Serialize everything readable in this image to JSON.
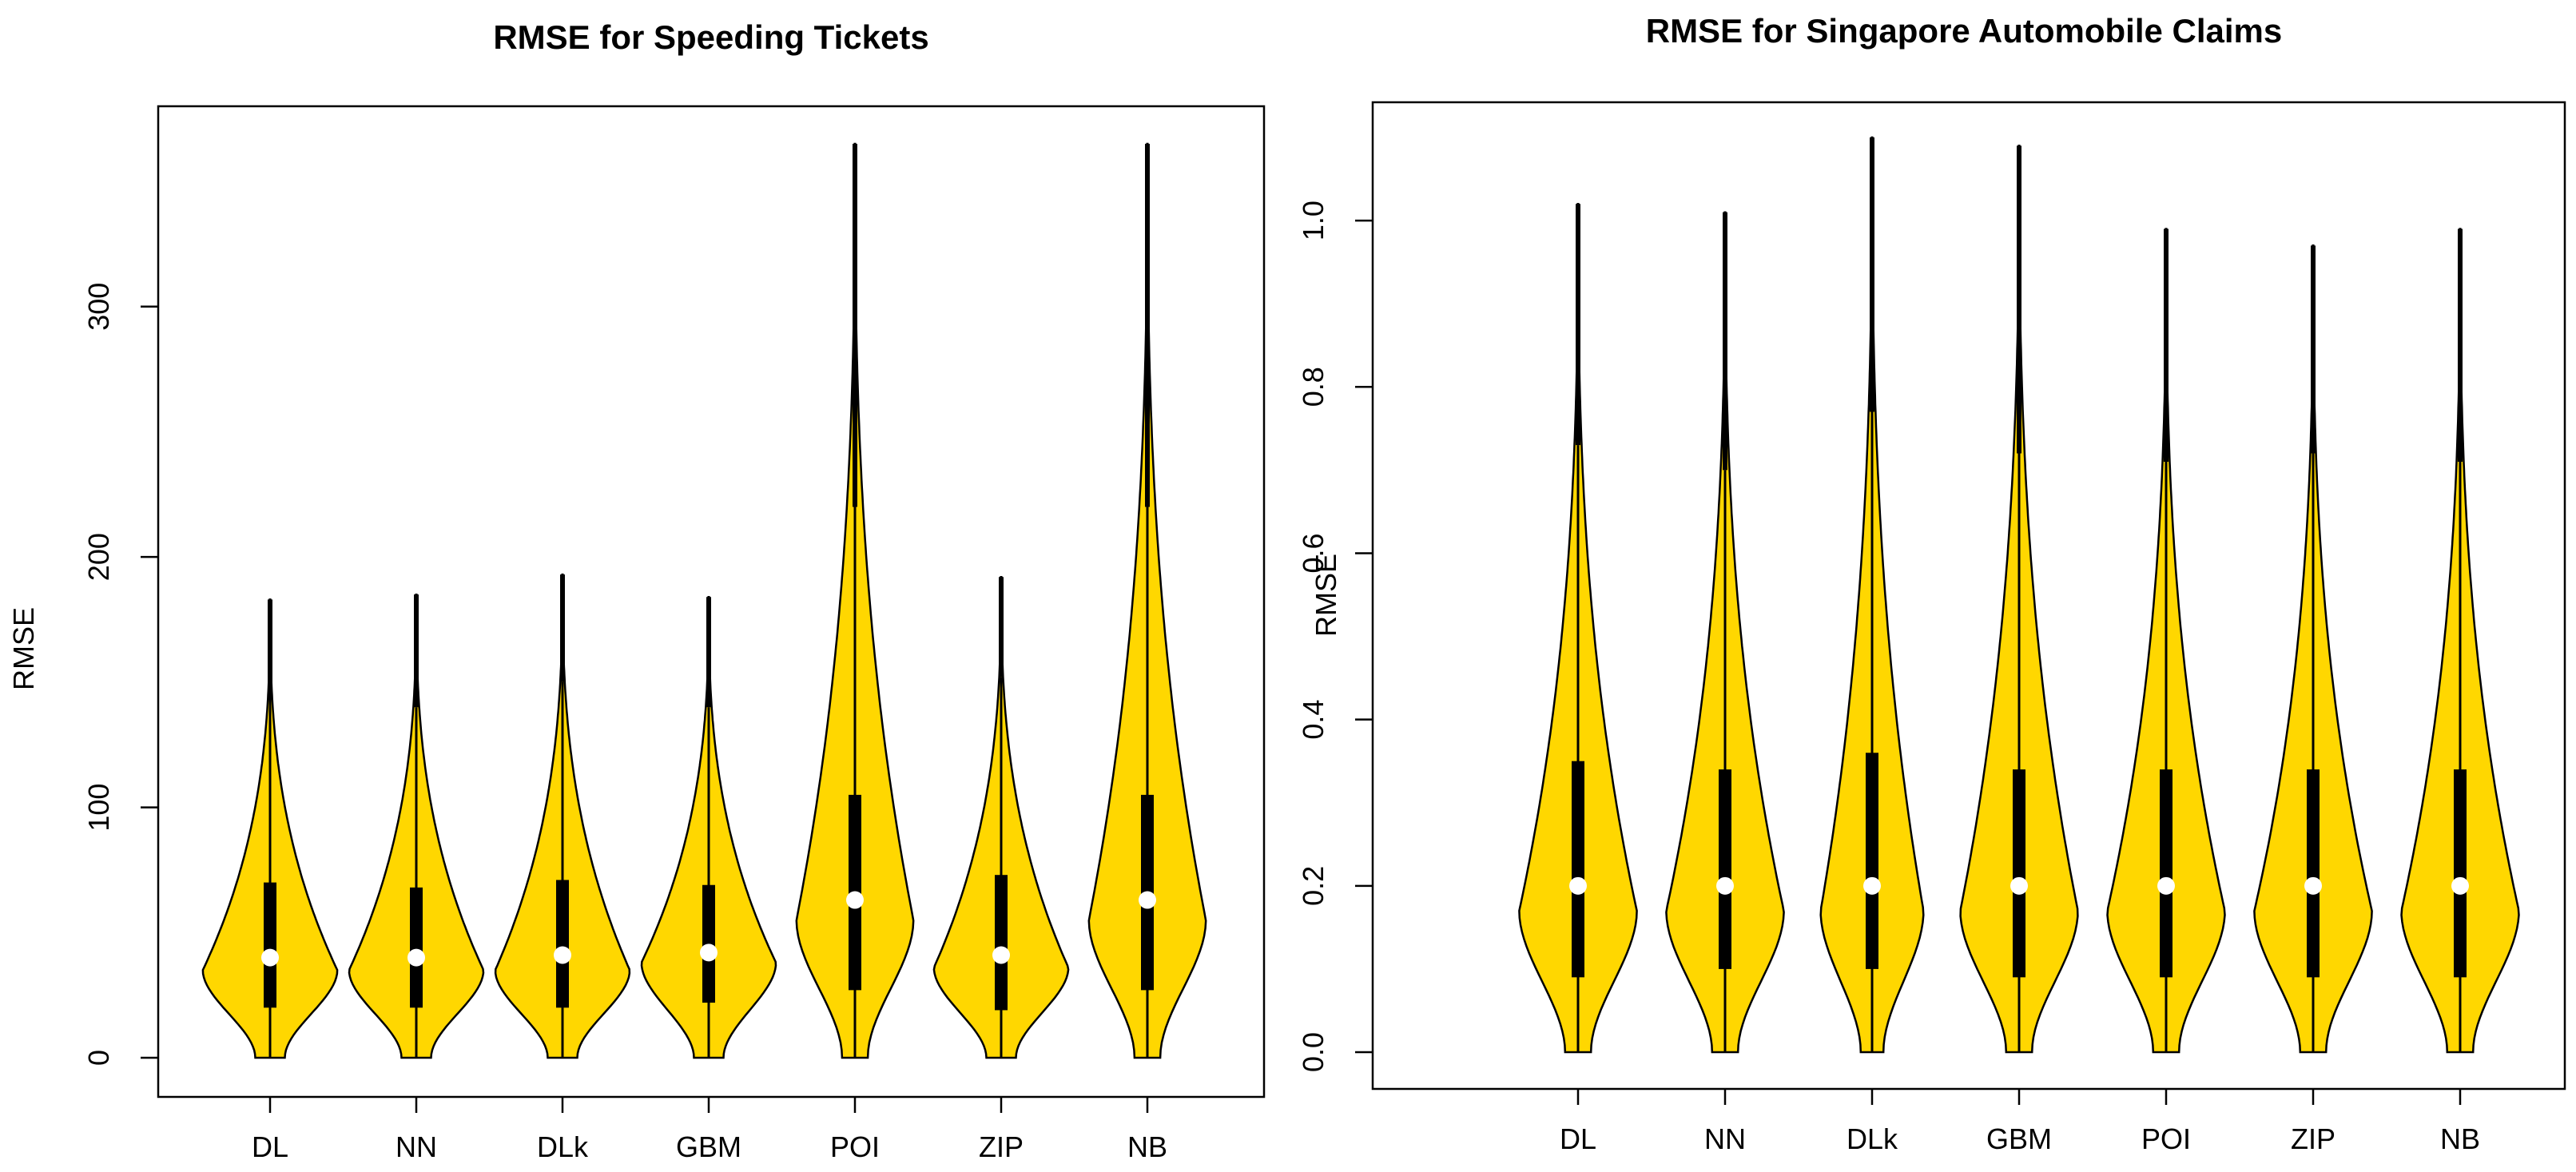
{
  "colors": {
    "violin_fill": "#FFD700",
    "outline": "#000000",
    "median_dot": "#FFFFFF"
  },
  "chart_data": [
    {
      "type": "violin",
      "title": "RMSE for Speeding Tickets",
      "xlabel": "",
      "ylabel": "RMSE",
      "ylim": [
        0,
        365
      ],
      "yticks": [
        0,
        100,
        200,
        300
      ],
      "ytick_labels": [
        "0",
        "100",
        "200",
        "300"
      ],
      "categories": [
        "DL",
        "NN",
        "DLk",
        "GBM",
        "POI",
        "ZIP",
        "NB"
      ],
      "series": [
        {
          "name": "DL",
          "min": 0,
          "q1": 20,
          "median": 40,
          "q3": 70,
          "whisker_high": 145,
          "max": 183,
          "mode": 35,
          "halfwidth": 0.46
        },
        {
          "name": "NN",
          "min": 0,
          "q1": 20,
          "median": 40,
          "q3": 68,
          "whisker_high": 140,
          "max": 185,
          "mode": 35,
          "halfwidth": 0.46
        },
        {
          "name": "DLk",
          "min": 0,
          "q1": 20,
          "median": 41,
          "q3": 71,
          "whisker_high": 150,
          "max": 193,
          "mode": 35,
          "halfwidth": 0.46
        },
        {
          "name": "GBM",
          "min": 0,
          "q1": 22,
          "median": 42,
          "q3": 69,
          "whisker_high": 140,
          "max": 184,
          "mode": 38,
          "halfwidth": 0.46
        },
        {
          "name": "POI",
          "min": 0,
          "q1": 27,
          "median": 63,
          "q3": 105,
          "whisker_high": 220,
          "max": 365,
          "mode": 55,
          "halfwidth": 0.4
        },
        {
          "name": "ZIP",
          "min": 0,
          "q1": 19,
          "median": 41,
          "q3": 73,
          "whisker_high": 152,
          "max": 192,
          "mode": 36,
          "halfwidth": 0.46
        },
        {
          "name": "NB",
          "min": 0,
          "q1": 27,
          "median": 63,
          "q3": 105,
          "whisker_high": 220,
          "max": 365,
          "mode": 55,
          "halfwidth": 0.4
        }
      ]
    },
    {
      "type": "violin",
      "title": "RMSE for Singapore Automobile Claims",
      "xlabel": "",
      "ylabel": "RMSE",
      "ylim": [
        0,
        1.1
      ],
      "yticks": [
        0.0,
        0.2,
        0.4,
        0.6,
        0.8,
        1.0
      ],
      "ytick_labels": [
        "0.0",
        "0.2",
        "0.4",
        "0.6",
        "0.8",
        "1.0"
      ],
      "categories": [
        "DL",
        "NN",
        "DLk",
        "GBM",
        "POI",
        "ZIP",
        "NB"
      ],
      "series": [
        {
          "name": "DL",
          "min": 0,
          "q1": 0.09,
          "median": 0.2,
          "q3": 0.35,
          "whisker_high": 0.73,
          "max": 1.02,
          "mode": 0.17,
          "halfwidth": 0.4
        },
        {
          "name": "NN",
          "min": 0,
          "q1": 0.1,
          "median": 0.2,
          "q3": 0.34,
          "whisker_high": 0.7,
          "max": 1.01,
          "mode": 0.17,
          "halfwidth": 0.4
        },
        {
          "name": "DLk",
          "min": 0,
          "q1": 0.1,
          "median": 0.2,
          "q3": 0.36,
          "whisker_high": 0.77,
          "max": 1.1,
          "mode": 0.17,
          "halfwidth": 0.35
        },
        {
          "name": "GBM",
          "min": 0,
          "q1": 0.09,
          "median": 0.2,
          "q3": 0.34,
          "whisker_high": 0.72,
          "max": 1.09,
          "mode": 0.17,
          "halfwidth": 0.4
        },
        {
          "name": "POI",
          "min": 0,
          "q1": 0.09,
          "median": 0.2,
          "q3": 0.34,
          "whisker_high": 0.71,
          "max": 0.99,
          "mode": 0.17,
          "halfwidth": 0.4
        },
        {
          "name": "ZIP",
          "min": 0,
          "q1": 0.09,
          "median": 0.2,
          "q3": 0.34,
          "whisker_high": 0.72,
          "max": 0.97,
          "mode": 0.17,
          "halfwidth": 0.4
        },
        {
          "name": "NB",
          "min": 0,
          "q1": 0.09,
          "median": 0.2,
          "q3": 0.34,
          "whisker_high": 0.71,
          "max": 0.99,
          "mode": 0.17,
          "halfwidth": 0.4
        }
      ]
    }
  ]
}
